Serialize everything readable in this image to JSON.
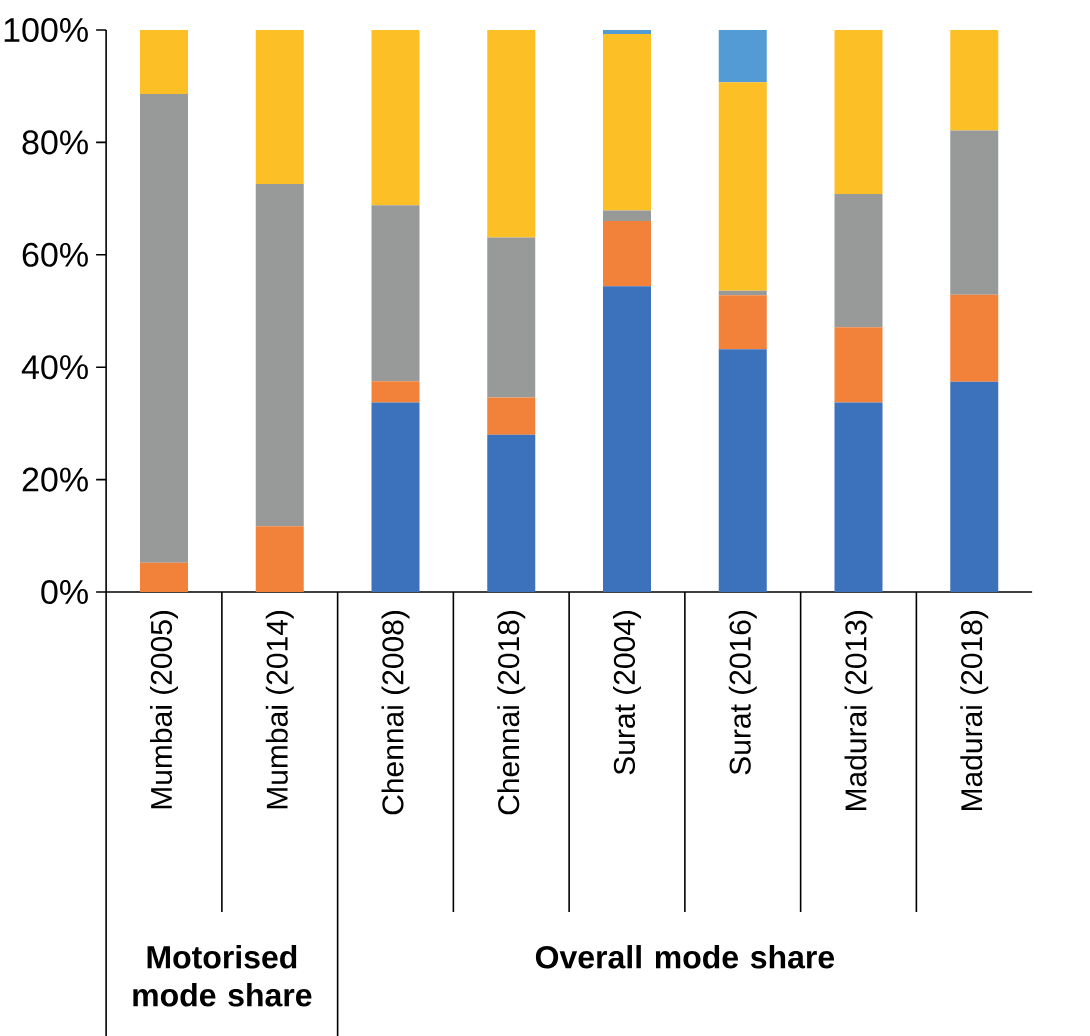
{
  "chart_data": {
    "type": "bar",
    "stacked": true,
    "categories": [
      "Mumbai (2005)",
      "Mumbai (2014)",
      "Chennai (2008)",
      "Chennai (2018)",
      "Surat (2004)",
      "Surat (2016)",
      "Madurai (2013)",
      "Madurai (2018)"
    ],
    "series": [
      {
        "color": "#3c72bc",
        "values": [
          0,
          0,
          33.7,
          28.0,
          54.4,
          43.2,
          33.7,
          37.4
        ]
      },
      {
        "color": "#f2823a",
        "values": [
          5.2,
          11.7,
          3.8,
          6.6,
          11.6,
          9.6,
          13.4,
          15.5
        ]
      },
      {
        "color": "#989a9a",
        "values": [
          83.4,
          60.9,
          31.3,
          28.5,
          1.9,
          0.8,
          23.7,
          29.2
        ]
      },
      {
        "color": "#fdbf26",
        "values": [
          11.4,
          27.4,
          31.2,
          36.9,
          31.4,
          37.1,
          29.2,
          17.9
        ]
      },
      {
        "color": "#529bd4",
        "values": [
          0,
          0,
          0,
          0,
          0.7,
          9.3,
          0,
          0
        ]
      }
    ],
    "ylim": [
      0,
      100
    ],
    "yticks": [
      {
        "value": 0,
        "label": "0%"
      },
      {
        "value": 20,
        "label": "20%"
      },
      {
        "value": 40,
        "label": "40%"
      },
      {
        "value": 60,
        "label": "60%"
      },
      {
        "value": 80,
        "label": "80%"
      },
      {
        "value": 100,
        "label": "100%"
      }
    ],
    "annotations": [
      "Motorised mode share",
      "Overall mode share"
    ]
  }
}
